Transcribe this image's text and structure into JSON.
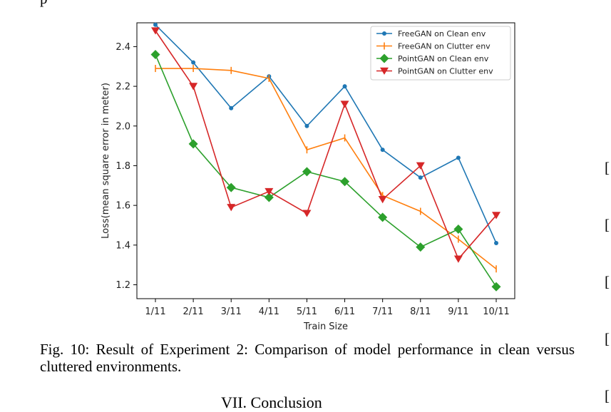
{
  "top_fragment": "p",
  "caption": "Fig. 10: Result of Experiment 2: Comparison of model performance in clean versus cluttered environments.",
  "next_heading": "VII. Conclusion",
  "margin_brackets": [
    "[",
    "[",
    "[",
    "[",
    "["
  ],
  "chart_data": {
    "type": "line",
    "title": "",
    "xlabel": "Train Size",
    "ylabel": "Loss(mean square error in meter)",
    "categories": [
      "1/11",
      "2/11",
      "3/11",
      "4/11",
      "5/11",
      "6/11",
      "7/11",
      "8/11",
      "9/11",
      "10/11"
    ],
    "ylim": [
      1.13,
      2.52
    ],
    "yticks": [
      1.2,
      1.4,
      1.6,
      1.8,
      2.0,
      2.2,
      2.4
    ],
    "grid": false,
    "legend_position": "top-right",
    "series": [
      {
        "name": "FreeGAN on Clean env",
        "color": "#1f77b4",
        "marker": "dot",
        "values": [
          2.51,
          2.32,
          2.09,
          2.25,
          2.0,
          2.2,
          1.88,
          1.74,
          1.84,
          1.41
        ]
      },
      {
        "name": "FreeGAN on Clutter env",
        "color": "#ff7f0e",
        "marker": "vline",
        "values": [
          2.29,
          2.29,
          2.28,
          2.24,
          1.88,
          1.94,
          1.65,
          1.57,
          1.43,
          1.28
        ]
      },
      {
        "name": "PointGAN on Clean env",
        "color": "#2ca02c",
        "marker": "diamond",
        "values": [
          2.36,
          1.91,
          1.69,
          1.64,
          1.77,
          1.72,
          1.54,
          1.39,
          1.48,
          1.19
        ]
      },
      {
        "name": "PointGAN on Clutter env",
        "color": "#d62728",
        "marker": "triangle-down",
        "values": [
          2.48,
          2.2,
          1.59,
          1.67,
          1.56,
          2.11,
          1.63,
          1.8,
          1.33,
          1.55
        ]
      }
    ]
  }
}
